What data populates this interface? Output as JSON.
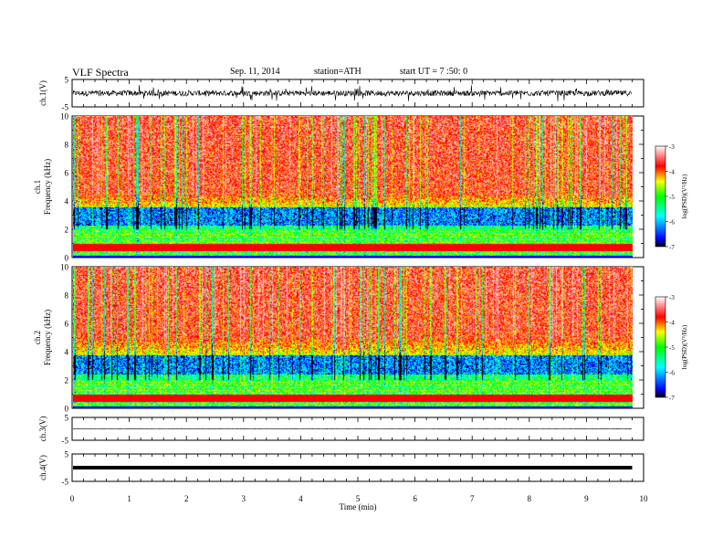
{
  "header": {
    "title": "VLF  Spectra",
    "date": "Sep. 11, 2014",
    "station": "station=ATH",
    "start": "start  UT  =   7 :50: 0"
  },
  "chart_data": {
    "type": "heatmap",
    "xlabel": "Time  (min)",
    "xlim": [
      0,
      10
    ],
    "xticks": [
      "0",
      "1",
      "2",
      "3",
      "4",
      "5",
      "6",
      "7",
      "8",
      "9",
      "10"
    ],
    "data_end_min": 9.8,
    "panels": [
      {
        "kind": "waveform",
        "ylabel": "ch.1(V)",
        "ylim": [
          -5,
          5
        ],
        "yticks": [
          "5",
          "-5"
        ],
        "amplitude_typical": 1.0,
        "amplitude_spikes": 3.0
      },
      {
        "kind": "spectrogram",
        "ylabel": "ch.1\nFrequency  (kHz)",
        "ylim": [
          0,
          10
        ],
        "yticks": [
          "10",
          "8",
          "6",
          "4",
          "2",
          "0"
        ],
        "colorbar_label": "log(PSD)(V²/Hz)",
        "colorbar_ticks": [
          "-3",
          "-4",
          "-5",
          "-6",
          "-7"
        ],
        "colorbar_range": [
          -7,
          -3
        ],
        "band_red_above_khz": 4.5,
        "band_blue_khz": [
          2.3,
          3.6
        ],
        "band_lines_below_khz": 2.0
      },
      {
        "kind": "spectrogram",
        "ylabel": "ch.2\nFrequency  (kHz)",
        "ylim": [
          0,
          10
        ],
        "yticks": [
          "10",
          "8",
          "6",
          "4",
          "2",
          "0"
        ],
        "colorbar_label": "log(PSD)(V²/Hz)",
        "colorbar_ticks": [
          "-3",
          "-4",
          "-5",
          "-6",
          "-7"
        ],
        "colorbar_range": [
          -7,
          -3
        ],
        "band_red_above_khz": 5.0,
        "band_blue_khz": [
          2.4,
          3.8
        ],
        "band_lines_below_khz": 2.0
      },
      {
        "kind": "waveform",
        "ylabel": "ch.3(V)",
        "ylim": [
          -5,
          5
        ],
        "yticks": [
          "5",
          "-5"
        ],
        "amplitude_typical": 0.1,
        "amplitude_spikes": 0.15
      },
      {
        "kind": "waveform",
        "ylabel": "ch.4(V)",
        "ylim": [
          -5,
          5
        ],
        "yticks": [
          "5",
          "-5"
        ],
        "offset": 0.0,
        "amplitude_typical": 0.15,
        "thick": true
      }
    ],
    "colors": {
      "low": "#000000",
      "blue": "#0000ff",
      "cyan": "#00ffff",
      "green": "#00ff00",
      "yellow": "#ffff00",
      "red": "#ff0000",
      "high": "#ffffff"
    }
  }
}
